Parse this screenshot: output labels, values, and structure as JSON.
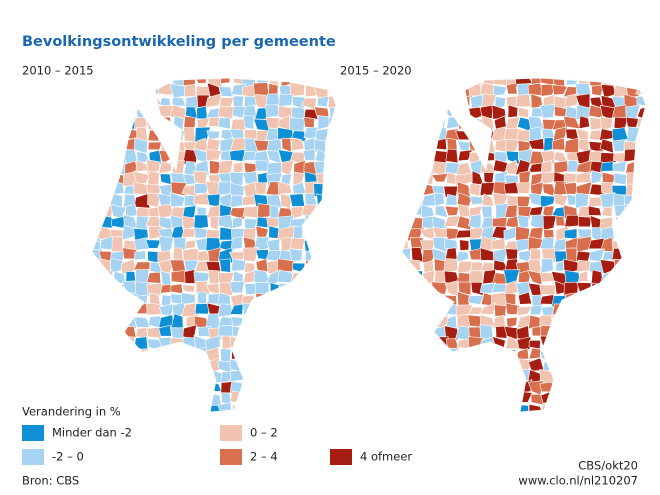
{
  "title": "Bevolkingsontwikkeling per gemeente",
  "maps": [
    {
      "title": "2010 – 2015"
    },
    {
      "title": "2015 – 2020"
    }
  ],
  "legend": {
    "title": "Verandering in %",
    "items": [
      {
        "label": "Minder dan -2",
        "color": "#0e8fd6"
      },
      {
        "label": "-2 – 0",
        "color": "#a6d3f2"
      },
      {
        "label": "0 – 2",
        "color": "#f0c4b0"
      },
      {
        "label": "2 – 4",
        "color": "#d8704f"
      },
      {
        "label": "4 ofmeer",
        "color": "#a61e12"
      }
    ]
  },
  "source": "Bron: CBS",
  "credits": [
    "CBS/okt20",
    "www.clo.nl/nl210207"
  ]
}
